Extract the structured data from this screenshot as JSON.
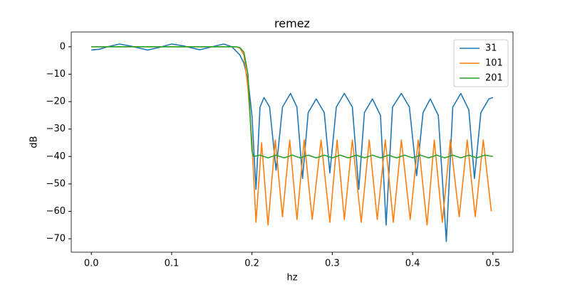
{
  "chart_data": {
    "type": "line",
    "title": "remez",
    "x_label": "hz",
    "y_label": "dB",
    "xlim": [
      -0.025,
      0.525
    ],
    "ylim": [
      -74.9,
      5.4
    ],
    "xticks": [
      {
        "value": 0,
        "label": "0.0"
      },
      {
        "value": 0.1,
        "label": "0.1"
      },
      {
        "value": 0.2,
        "label": "0.2"
      },
      {
        "value": 0.3,
        "label": "0.3"
      },
      {
        "value": 0.4,
        "label": "0.4"
      },
      {
        "value": 0.5,
        "label": "0.5"
      }
    ],
    "yticks": [
      {
        "value": -70,
        "label": "−70"
      },
      {
        "value": -60,
        "label": "−60"
      },
      {
        "value": -50,
        "label": "−50"
      },
      {
        "value": -40,
        "label": "−40"
      },
      {
        "value": -30,
        "label": "−30"
      },
      {
        "value": -20,
        "label": "−20"
      },
      {
        "value": -10,
        "label": "−10"
      },
      0
    ],
    "legend": "upper right",
    "series": [
      {
        "name": "31",
        "color": "#1f77b4",
        "x": [
          0,
          0.01,
          0.02,
          0.035,
          0.05,
          0.07,
          0.085,
          0.1,
          0.115,
          0.135,
          0.15,
          0.165,
          0.175,
          0.185,
          0.19,
          0.195,
          0.2,
          0.205,
          0.21,
          0.215,
          0.222,
          0.23,
          0.238,
          0.248,
          0.256,
          0.263,
          0.27,
          0.28,
          0.29,
          0.297,
          0.305,
          0.315,
          0.325,
          0.333,
          0.34,
          0.35,
          0.36,
          0.367,
          0.375,
          0.386,
          0.396,
          0.405,
          0.413,
          0.422,
          0.432,
          0.442,
          0.45,
          0.46,
          0.47,
          0.477,
          0.485,
          0.495,
          0.5
        ],
        "values": [
          -1.2,
          -0.9,
          0,
          1,
          0.2,
          -1.2,
          -0.2,
          1,
          0.3,
          -1.1,
          0,
          1,
          0,
          -3,
          -6,
          -12,
          -25,
          -52,
          -22,
          -18.5,
          -22,
          -45,
          -22,
          -17,
          -22,
          -48,
          -24,
          -19,
          -24,
          -46,
          -22,
          -17,
          -22,
          -52,
          -24,
          -19,
          -25,
          -65,
          -22,
          -17,
          -22,
          -47,
          -24,
          -19,
          -25,
          -71,
          -22,
          -17,
          -23,
          -48,
          -24,
          -19,
          -18.5
        ]
      },
      {
        "name": "101",
        "color": "#ff7f0e",
        "x": [
          0,
          0.18,
          0.185,
          0.19,
          0.195,
          0.2,
          0.205,
          0.212,
          0.22,
          0.229,
          0.238,
          0.247,
          0.256,
          0.265,
          0.275,
          0.286,
          0.297,
          0.306,
          0.315,
          0.325,
          0.336,
          0.346,
          0.356,
          0.366,
          0.376,
          0.386,
          0.397,
          0.407,
          0.418,
          0.427,
          0.437,
          0.447,
          0.458,
          0.468,
          0.478,
          0.488,
          0.498
        ],
        "values": [
          0,
          0,
          -0.5,
          -3,
          -15,
          -35,
          -64,
          -35,
          -65,
          -34,
          -62,
          -34,
          -63,
          -34,
          -63,
          -34,
          -64,
          -34,
          -63,
          -34,
          -64,
          -34,
          -63,
          -34,
          -64,
          -34,
          -63,
          -34,
          -65,
          -34,
          -64,
          -34,
          -62,
          -34,
          -62,
          -34,
          -60
        ]
      },
      {
        "name": "201",
        "color": "#2ca02c",
        "x": [
          0,
          0.18,
          0.185,
          0.19,
          0.195,
          0.2,
          0.202,
          0.21,
          0.22,
          0.23,
          0.24,
          0.25,
          0.26,
          0.27,
          0.28,
          0.29,
          0.3,
          0.31,
          0.32,
          0.33,
          0.34,
          0.35,
          0.36,
          0.37,
          0.38,
          0.39,
          0.4,
          0.41,
          0.42,
          0.43,
          0.44,
          0.45,
          0.46,
          0.47,
          0.48,
          0.49,
          0.5
        ],
        "values": [
          0,
          0,
          -0.3,
          -2,
          -10,
          -38,
          -40,
          -39.5,
          -40.5,
          -39.5,
          -40.5,
          -39.5,
          -40.5,
          -39.5,
          -40.5,
          -39.5,
          -40.5,
          -39.5,
          -40.5,
          -39.5,
          -40.5,
          -39.5,
          -40.5,
          -39.5,
          -40.5,
          -39.5,
          -40.5,
          -39.5,
          -40.5,
          -39.5,
          -40.5,
          -39.5,
          -40.5,
          -39.5,
          -40.5,
          -39.5,
          -40
        ]
      }
    ]
  }
}
